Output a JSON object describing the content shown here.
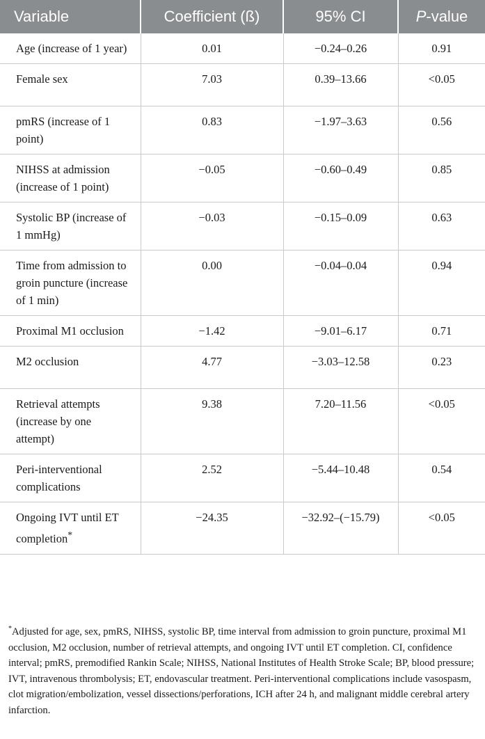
{
  "table": {
    "headers": {
      "variable": "Variable",
      "coefficient": "Coefficient (ß)",
      "ci": "95% CI",
      "p_prefix": "P",
      "p_suffix": "-value"
    },
    "rows": [
      {
        "variable": "Age (increase of 1 year)",
        "coefficient": "0.01",
        "ci": "−0.24–0.26",
        "p": "0.91"
      },
      {
        "variable": "Female sex",
        "coefficient": "7.03",
        "ci": "0.39–13.66",
        "p": "<0.05"
      },
      {
        "variable": "pmRS (increase of 1 point)",
        "coefficient": "0.83",
        "ci": "−1.97–3.63",
        "p": "0.56"
      },
      {
        "variable": "NIHSS at admission (increase of 1 point)",
        "coefficient": "−0.05",
        "ci": "−0.60–0.49",
        "p": "0.85"
      },
      {
        "variable": "Systolic BP (increase of 1 mmHg)",
        "coefficient": "−0.03",
        "ci": "−0.15–0.09",
        "p": "0.63"
      },
      {
        "variable": "Time from admission to groin puncture (increase of 1 min)",
        "coefficient": "0.00",
        "ci": "−0.04–0.04",
        "p": "0.94"
      },
      {
        "variable": "Proximal M1 occlusion",
        "coefficient": "−1.42",
        "ci": "−9.01–6.17",
        "p": "0.71"
      },
      {
        "variable": "M2 occlusion",
        "coefficient": "4.77",
        "ci": "−3.03–12.58",
        "p": "0.23"
      },
      {
        "variable": "Retrieval attempts (increase by one attempt)",
        "coefficient": "9.38",
        "ci": "7.20–11.56",
        "p": "<0.05"
      },
      {
        "variable": "Peri-interventional complications",
        "coefficient": "2.52",
        "ci": "−5.44–10.48",
        "p": "0.54"
      },
      {
        "variable": "Ongoing IVT until ET completion",
        "variable_mark": "*",
        "coefficient": "−24.35",
        "ci": "−32.92–(−15.79)",
        "p": "<0.05"
      }
    ]
  },
  "footnote": {
    "mark": "*",
    "text": "Adjusted for age, sex, pmRS, NIHSS, systolic BP, time interval from admission to groin puncture, proximal M1 occlusion, M2 occlusion, number of retrieval attempts, and ongoing IVT until ET completion. CI, confidence interval; pmRS, premodified Rankin Scale; NIHSS, National Institutes of Health Stroke Scale; BP, blood pressure; IVT, intravenous thrombolysis; ET, endovascular treatment. Peri-interventional complications include vasospasm, clot migration/embolization, vessel dissections/perforations, ICH after 24 h, and malignant middle cerebral artery infarction."
  }
}
